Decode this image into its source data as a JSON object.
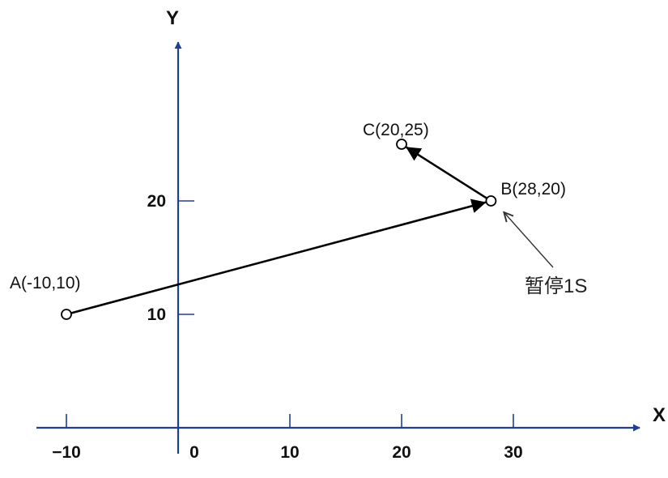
{
  "axes": {
    "x_label": "X",
    "y_label": "Y",
    "x_ticks": [
      {
        "value": -10,
        "label": "−10"
      },
      {
        "value": 0,
        "label": "0"
      },
      {
        "value": 10,
        "label": "10"
      },
      {
        "value": 20,
        "label": "20"
      },
      {
        "value": 30,
        "label": "30"
      }
    ],
    "y_ticks": [
      {
        "value": 10,
        "label": "10"
      },
      {
        "value": 20,
        "label": "20"
      }
    ]
  },
  "points": [
    {
      "id": "A",
      "x": -10,
      "y": 10,
      "label": "A(-10,10)"
    },
    {
      "id": "B",
      "x": 28,
      "y": 20,
      "label": "B(28,20)"
    },
    {
      "id": "C",
      "x": 20,
      "y": 25,
      "label": "C(20,25)"
    }
  ],
  "path": [
    "A",
    "B",
    "C"
  ],
  "annotation": {
    "target": "B",
    "text": "暂停1S"
  },
  "colors": {
    "axis": "#1f3f8f",
    "path": "#000000",
    "text": "#111111"
  }
}
